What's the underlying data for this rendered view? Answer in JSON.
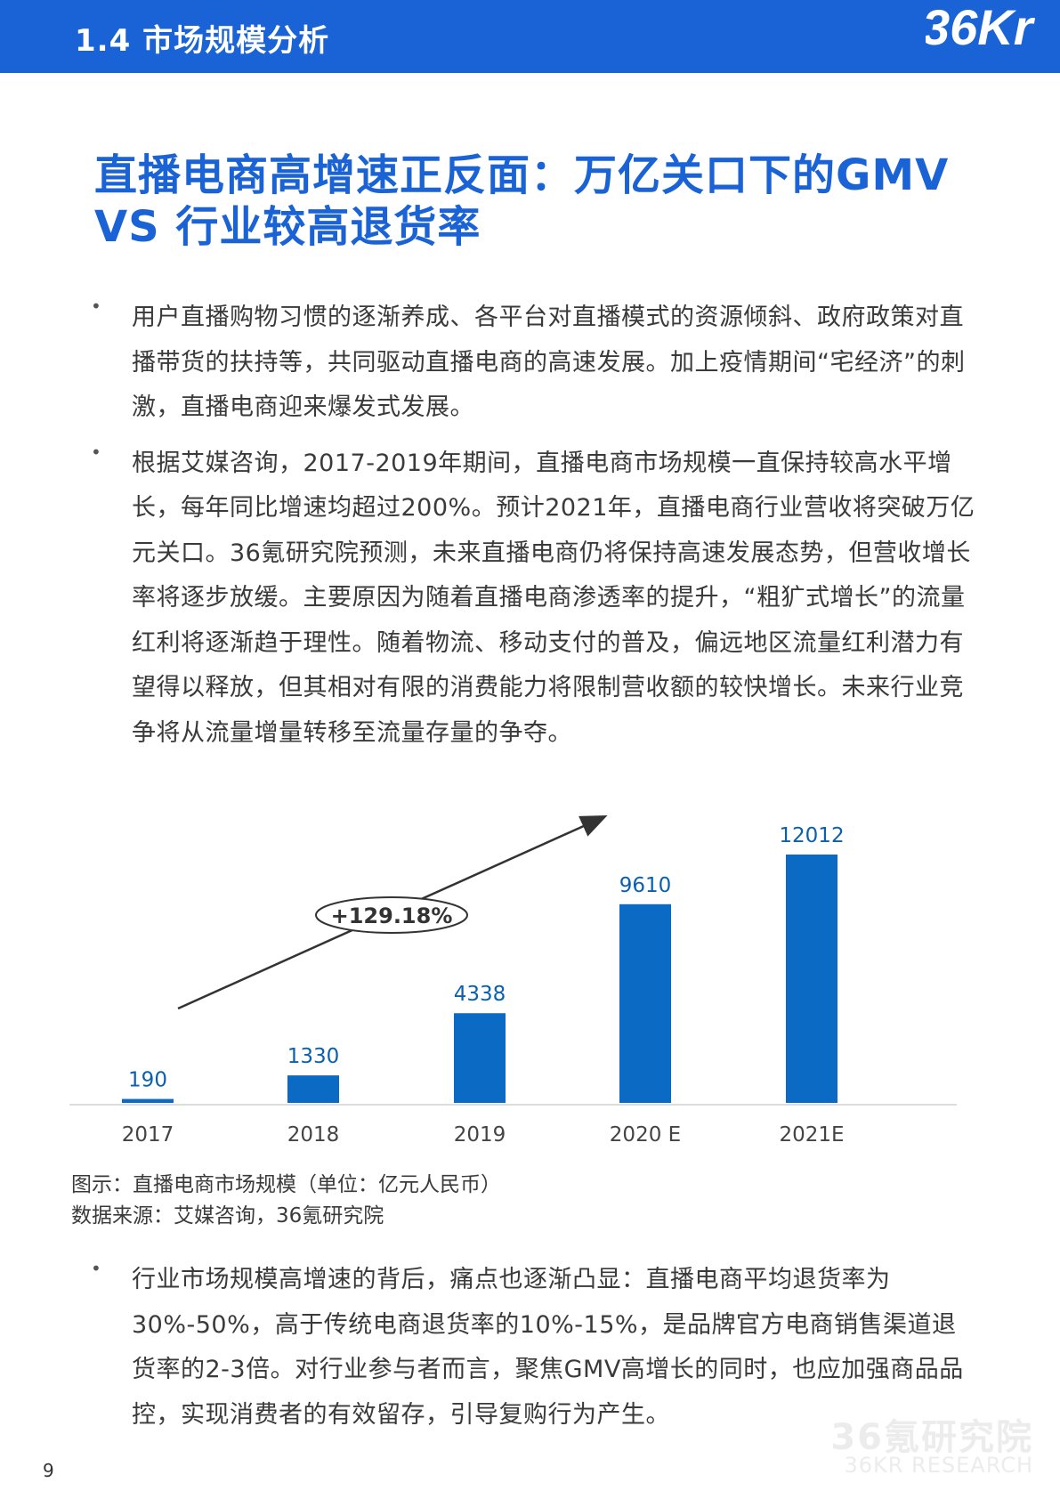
{
  "header": {
    "section_title": "1.4 市场规模分析",
    "logo_text": "36Kr",
    "brand_color": "#1a63d6"
  },
  "heading": {
    "line1": "直播电商高增速正反面：万亿关口下的GMV",
    "line2": "VS 行业较高退货率"
  },
  "bullets_top": [
    "用户直播购物习惯的逐渐养成、各平台对直播模式的资源倾斜、政府政策对直播带货的扶持等，共同驱动直播电商的高速发展。加上疫情期间“宅经济”的刺激，直播电商迎来爆发式发展。",
    "根据艾媒咨询，2017-2019年期间，直播电商市场规模一直保持较高水平增长，每年同比增速均超过200%。预计2021年，直播电商行业营收将突破万亿元关口。36氪研究院预测，未来直播电商仍将保持高速发展态势，但营收增长率将逐步放缓。主要原因为随着直播电商渗透率的提升，“粗犷式增长”的流量红利将逐渐趋于理性。随着物流、移动支付的普及，偏远地区流量红利潜力有望得以释放，但其相对有限的消费能力将限制营收额的较快增长。未来行业竞争将从流量增量转移至流量存量的争夺。"
  ],
  "chart_data": {
    "type": "bar",
    "categories": [
      "2017",
      "2018",
      "2019",
      "2020 E",
      "2021E"
    ],
    "values": [
      190,
      1330,
      4338,
      9610,
      12012
    ],
    "data_labels": [
      "190",
      "1330",
      "4338",
      "9610",
      "12012"
    ],
    "growth_annotation": "+129.18%",
    "bar_color": "#0b6bc4",
    "label_color": "#0b5fb0",
    "grid": false,
    "ylim": [
      0,
      12012
    ]
  },
  "caption": {
    "title": "图示：直播电商市场规模（单位：亿元人民币）",
    "source": "数据来源：艾媒咨询，36氪研究院"
  },
  "bullets_bottom": [
    "行业市场规模高增速的背后，痛点也逐渐凸显：直播电商平均退货率为30%-50%，高于传统电商退货率的10%-15%，是品牌官方电商销售渠道退货率的2-3倍。对行业参与者而言，聚焦GMV高增长的同时，也应加强商品品控，实现消费者的有效留存，引导复购行为产生。"
  ],
  "watermark": {
    "cn": "36氪研究院",
    "en": "36KR RESEARCH"
  },
  "page_number": "9"
}
